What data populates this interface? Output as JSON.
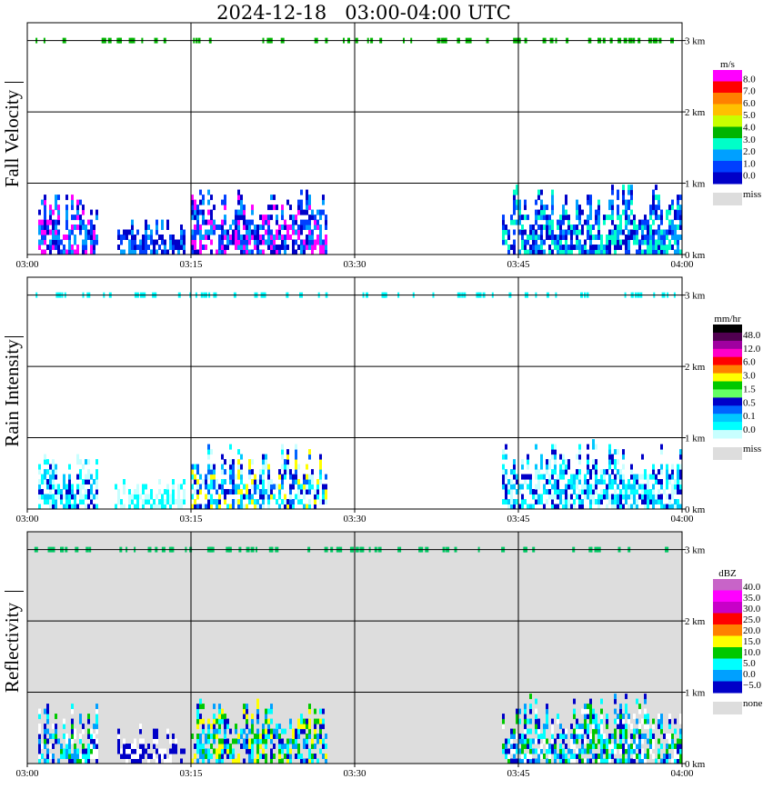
{
  "title": "2024-12-18   03:00-04:00 UTC",
  "chart_data": [
    {
      "type": "heatmap",
      "name": "fall_velocity",
      "ylabel": "Fall Velocity",
      "xlim_minutes": [
        0,
        60
      ],
      "ylim_km": [
        0,
        3.25
      ],
      "x_ticks": [
        "03:00",
        "03:15",
        "03:30",
        "03:45",
        "04:00"
      ],
      "y_ticks": [
        "0 km",
        "1 km",
        "2 km",
        "3 km"
      ],
      "background": "#ffffff",
      "colorbar": {
        "unit": "m/s",
        "labels": [
          "8.0",
          "7.0",
          "6.0",
          "5.0",
          "4.0",
          "3.0",
          "2.0",
          "1.0",
          "0.0"
        ],
        "colors": [
          "#ff00ff",
          "#ff0000",
          "#ff8000",
          "#ffc000",
          "#c8ff00",
          "#00b400",
          "#00ffc8",
          "#00a0ff",
          "#0040ff",
          "#0000c8"
        ],
        "miss_label": "miss",
        "miss_color": "#dddddd"
      },
      "echo_segments": [
        {
          "start": 1,
          "end": 6.5,
          "top_km": 0.85,
          "colors": [
            "#0000c8",
            "#0040ff",
            "#00a0ff",
            "#ff00ff"
          ]
        },
        {
          "start": 8,
          "end": 14.5,
          "top_km": 0.5,
          "colors": [
            "#0040ff",
            "#00a0ff",
            "#0000c8"
          ]
        },
        {
          "start": 15,
          "end": 27.5,
          "top_km": 0.9,
          "colors": [
            "#0000c8",
            "#0040ff",
            "#00a0ff",
            "#ff00ff"
          ]
        },
        {
          "start": 43.5,
          "end": 60,
          "top_km": 0.95,
          "colors": [
            "#0000c8",
            "#0040ff",
            "#00a0ff",
            "#00ffc8"
          ]
        }
      ],
      "top_speckle_color": "#00b400"
    },
    {
      "type": "heatmap",
      "name": "rain_intensity",
      "ylabel": "Rain Intensity",
      "xlim_minutes": [
        0,
        60
      ],
      "ylim_km": [
        0,
        3.25
      ],
      "x_ticks": [
        "03:00",
        "03:15",
        "03:30",
        "03:45",
        "04:00"
      ],
      "y_ticks": [
        "0 km",
        "1 km",
        "2 km",
        "3 km"
      ],
      "background": "#ffffff",
      "colorbar": {
        "unit": "mm/hr",
        "labels": [
          "48.0",
          "12.0",
          "6.0",
          "3.0",
          "1.5",
          "0.5",
          "0.1",
          "0.0"
        ],
        "colors": [
          "#000000",
          "#500050",
          "#a000a0",
          "#ff00c8",
          "#ff0000",
          "#ff8000",
          "#ffff00",
          "#00c800",
          "#64ff64",
          "#0000c8",
          "#0064ff",
          "#00c8ff",
          "#00ffff",
          "#c8ffff"
        ],
        "miss_label": "miss",
        "miss_color": "#dddddd"
      },
      "echo_segments": [
        {
          "start": 1,
          "end": 6.5,
          "top_km": 0.8,
          "colors": [
            "#c8ffff",
            "#00ffff",
            "#00c8ff",
            "#0000c8"
          ]
        },
        {
          "start": 8,
          "end": 14.5,
          "top_km": 0.4,
          "colors": [
            "#c8ffff",
            "#00ffff"
          ]
        },
        {
          "start": 15,
          "end": 27.5,
          "top_km": 0.9,
          "colors": [
            "#c8ffff",
            "#00ffff",
            "#00c8ff",
            "#0064ff",
            "#0000c8",
            "#ffff00"
          ]
        },
        {
          "start": 43.5,
          "end": 60,
          "top_km": 0.95,
          "colors": [
            "#c8ffff",
            "#00ffff",
            "#00c8ff",
            "#0000c8"
          ]
        }
      ],
      "top_speckle_color": "#00ffff"
    },
    {
      "type": "heatmap",
      "name": "reflectivity",
      "ylabel": "Reflectivity",
      "xlim_minutes": [
        0,
        60
      ],
      "ylim_km": [
        0,
        3.25
      ],
      "x_ticks": [
        "03:00",
        "03:15",
        "03:30",
        "03:45",
        "04:00"
      ],
      "y_ticks": [
        "0 km",
        "1 km",
        "2 km",
        "3 km"
      ],
      "background": "#dddddd",
      "colorbar": {
        "unit": "dBZ",
        "labels": [
          "40.0",
          "35.0",
          "30.0",
          "25.0",
          "20.0",
          "15.0",
          "10.0",
          "5.0",
          "0.0",
          "−5.0"
        ],
        "colors": [
          "#c864c8",
          "#ff00ff",
          "#c800c8",
          "#ff0000",
          "#ff8000",
          "#ffff00",
          "#00c800",
          "#00ffff",
          "#00a0ff",
          "#0000c8"
        ],
        "miss_label": "none",
        "miss_color": "#dddddd"
      },
      "echo_segments": [
        {
          "start": 1,
          "end": 6.5,
          "top_km": 0.85,
          "colors": [
            "#00ffff",
            "#0000c8",
            "#00a0ff",
            "#00c800",
            "#ffffff"
          ]
        },
        {
          "start": 8,
          "end": 14.5,
          "top_km": 0.5,
          "colors": [
            "#ffffff",
            "#0000c8"
          ]
        },
        {
          "start": 15,
          "end": 27.5,
          "top_km": 0.9,
          "colors": [
            "#00ffff",
            "#00a0ff",
            "#0000c8",
            "#00c800",
            "#ffff00"
          ]
        },
        {
          "start": 43.5,
          "end": 60,
          "top_km": 0.95,
          "colors": [
            "#0000c8",
            "#00a0ff",
            "#00ffff",
            "#00c800",
            "#ffffff"
          ]
        }
      ],
      "top_speckle_color": "#00c864"
    }
  ]
}
